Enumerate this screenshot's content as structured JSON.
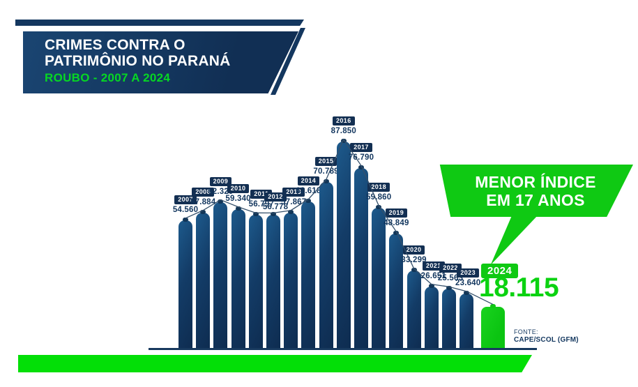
{
  "header": {
    "title_line1": "CRIMES CONTRA O",
    "title_line2": "PATRIMÔNIO NO PARANÁ",
    "subtitle": "ROUBO - 2007 A 2024"
  },
  "callout": {
    "line1": "MENOR ÍNDICE",
    "line2": "EM 17 ANOS"
  },
  "highlight": {
    "year": "2024",
    "value_label": "18.115"
  },
  "source": {
    "label": "FONTE:",
    "name": "CAPE/SCOL (GFM)"
  },
  "colors": {
    "navy": "#14375f",
    "navy_dark": "#0f2d50",
    "bar_navy": "#133c67",
    "green_accent": "#0fc913",
    "green_footer": "#03df07",
    "green_text": "#06d723"
  },
  "chart_data": {
    "type": "bar",
    "title": "CRIMES CONTRA O PATRIMÔNIO NO PARANÁ — ROUBO - 2007 A 2024",
    "categories": [
      "2007",
      "2008",
      "2009",
      "2010",
      "2011",
      "2012",
      "2013",
      "2014",
      "2015",
      "2016",
      "2017",
      "2018",
      "2019",
      "2020",
      "2021",
      "2022",
      "2023",
      "2024"
    ],
    "values": [
      54560,
      57884,
      62329,
      59340,
      56797,
      56778,
      57867,
      62618,
      70789,
      87850,
      76790,
      59860,
      48849,
      33299,
      26651,
      25563,
      23640,
      18115
    ],
    "value_labels": [
      "54.560",
      "57.884",
      "62.329",
      "59.340",
      "56.797",
      "56.778",
      "57.867",
      "62.618",
      "70.789",
      "87.850",
      "76.790",
      "59.860",
      "48.849",
      "33.299",
      "26.651",
      "25.563",
      "23.640",
      "18.115"
    ],
    "highlight_category": "2024",
    "annotation": "MENOR ÍNDICE EM 17 ANOS",
    "ylim": [
      0,
      90000
    ],
    "line_overlay": true,
    "legend": false,
    "grid": false
  }
}
